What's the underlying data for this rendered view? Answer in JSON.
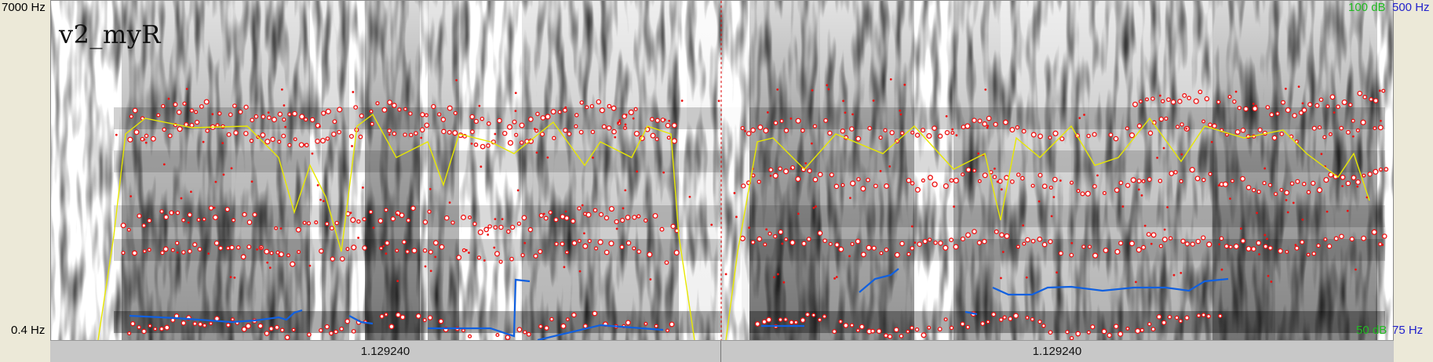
{
  "tier": {
    "name": "v2_myR"
  },
  "freq_axis": {
    "top": "7000 Hz",
    "bottom": "0.4 Hz"
  },
  "intensity_axis": {
    "top": "100 dB",
    "bottom": "50 dB",
    "color": "#22bb22"
  },
  "pitch_axis": {
    "top": "500 Hz",
    "bottom": "75 Hz",
    "color": "#2222cc"
  },
  "selection": {
    "cursor_color": "#dd0000"
  },
  "timebar": {
    "segments": [
      {
        "label": "1.129240"
      },
      {
        "label": "1.129240"
      }
    ]
  },
  "colors": {
    "formant": "#ee1111",
    "intensity_curve": "#e8e800",
    "pitch_curve": "#1060e0"
  }
}
